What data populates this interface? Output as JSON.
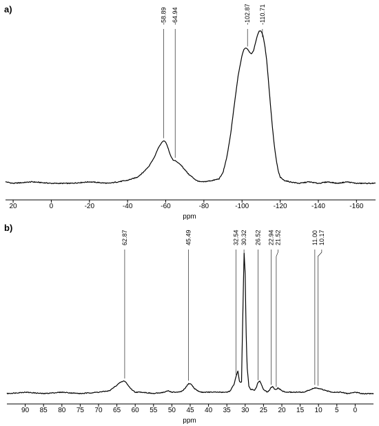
{
  "chart_data": [
    {
      "type": "line",
      "panel_label": "a)",
      "xlabel": "ppm",
      "xlim": [
        24,
        -170
      ],
      "x_reversed": true,
      "x_ticks": [
        20,
        0,
        -20,
        -40,
        -60,
        -80,
        -100,
        -120,
        -140,
        -160
      ],
      "x_tick_labels": [
        "20",
        "0",
        "-20",
        "-40",
        "-60",
        "-80",
        "-100",
        "-120",
        "-140",
        "-160"
      ],
      "ylim": [
        0,
        1
      ],
      "peak_labels": [
        "-58.89",
        "-64.94",
        "-102.87",
        "-110.71"
      ],
      "peak_positions": [
        -58.89,
        -64.94,
        -102.87,
        -110.71
      ],
      "series": [
        {
          "x": [
            24,
            20,
            10,
            0,
            -10,
            -20,
            -30,
            -35,
            -40,
            -45,
            -48,
            -51,
            -54,
            -56,
            -58,
            -59,
            -60,
            -61,
            -62,
            -63,
            -64,
            -65,
            -66,
            -68,
            -70,
            -72,
            -74,
            -76,
            -78,
            -80,
            -85,
            -88,
            -90,
            -92,
            -94,
            -96,
            -98,
            -100,
            -101,
            -102,
            -103,
            -104,
            -105,
            -106,
            -107,
            -108,
            -109,
            -110,
            -111,
            -112,
            -113,
            -114,
            -115,
            -116,
            -117,
            -118,
            -119,
            -120,
            -122,
            -125,
            -130,
            -135,
            -140,
            -145,
            -150,
            -155,
            -160,
            -165,
            -170
          ],
          "y": [
            0.01,
            0.0,
            0.01,
            0.0,
            0.0,
            0.01,
            0.0,
            0.01,
            0.02,
            0.04,
            0.07,
            0.11,
            0.17,
            0.23,
            0.27,
            0.28,
            0.27,
            0.24,
            0.2,
            0.17,
            0.15,
            0.15,
            0.14,
            0.12,
            0.09,
            0.06,
            0.04,
            0.02,
            0.01,
            0.01,
            0.02,
            0.03,
            0.07,
            0.17,
            0.32,
            0.52,
            0.71,
            0.84,
            0.88,
            0.89,
            0.88,
            0.86,
            0.85,
            0.87,
            0.92,
            0.97,
            1.0,
            1.0,
            0.97,
            0.9,
            0.8,
            0.65,
            0.5,
            0.36,
            0.24,
            0.15,
            0.08,
            0.04,
            0.02,
            0.01,
            0.0,
            0.01,
            0.0,
            0.01,
            0.0,
            0.01,
            0.0,
            0.0,
            0.0
          ]
        }
      ]
    },
    {
      "type": "line",
      "panel_label": "b)",
      "xlabel": "ppm",
      "xlim": [
        95,
        -5
      ],
      "x_reversed": true,
      "x_ticks": [
        90,
        85,
        80,
        75,
        70,
        65,
        60,
        55,
        50,
        45,
        40,
        35,
        30,
        25,
        20,
        15,
        10,
        5,
        0
      ],
      "x_tick_labels": [
        "90",
        "85",
        "80",
        "75",
        "70",
        "65",
        "60",
        "55",
        "50",
        "45",
        "40",
        "35",
        "30",
        "25",
        "20",
        "15",
        "10",
        "5",
        "0"
      ],
      "ylim": [
        0,
        1
      ],
      "peak_labels": [
        "62.87",
        "45.49",
        "32.54",
        "30.32",
        "26.52",
        "22.94",
        "21.52",
        "11.00",
        "10.17"
      ],
      "peak_positions": [
        62.87,
        45.49,
        32.54,
        30.32,
        26.52,
        22.94,
        21.52,
        11.0,
        10.17
      ],
      "series": [
        {
          "x": [
            95,
            90,
            85,
            80,
            75,
            70,
            67,
            65,
            64,
            63.5,
            63,
            62.5,
            62,
            61,
            60,
            58,
            55,
            52,
            51,
            50,
            48,
            47,
            46,
            45.5,
            45,
            44.5,
            44,
            43,
            42,
            40,
            38,
            35,
            34,
            33,
            32.5,
            32,
            31.5,
            31,
            30.8,
            30.5,
            30.3,
            30,
            29.8,
            29.5,
            29,
            28.5,
            28,
            27.5,
            27,
            26.5,
            26,
            25.5,
            25,
            24,
            23.5,
            23,
            22.5,
            22,
            21.5,
            21,
            20.5,
            20,
            19,
            18,
            16,
            14,
            13,
            12,
            11,
            10.5,
            10,
            9,
            8,
            6,
            4,
            2,
            0,
            -2,
            -5
          ],
          "y": [
            0.0,
            0.01,
            0.0,
            0.01,
            0.0,
            0.01,
            0.02,
            0.06,
            0.08,
            0.085,
            0.09,
            0.08,
            0.06,
            0.03,
            0.01,
            0.01,
            0.0,
            0.01,
            0.02,
            0.01,
            0.01,
            0.02,
            0.05,
            0.07,
            0.07,
            0.06,
            0.04,
            0.02,
            0.01,
            0.01,
            0.01,
            0.01,
            0.02,
            0.07,
            0.12,
            0.16,
            0.08,
            0.08,
            0.35,
            0.75,
            1.0,
            0.85,
            0.5,
            0.2,
            0.05,
            0.03,
            0.03,
            0.02,
            0.04,
            0.08,
            0.09,
            0.06,
            0.03,
            0.01,
            0.02,
            0.04,
            0.05,
            0.03,
            0.03,
            0.04,
            0.03,
            0.02,
            0.01,
            0.01,
            0.01,
            0.01,
            0.02,
            0.03,
            0.04,
            0.04,
            0.035,
            0.03,
            0.02,
            0.01,
            0.01,
            0.0,
            0.01,
            0.0,
            0.0
          ]
        }
      ]
    }
  ]
}
